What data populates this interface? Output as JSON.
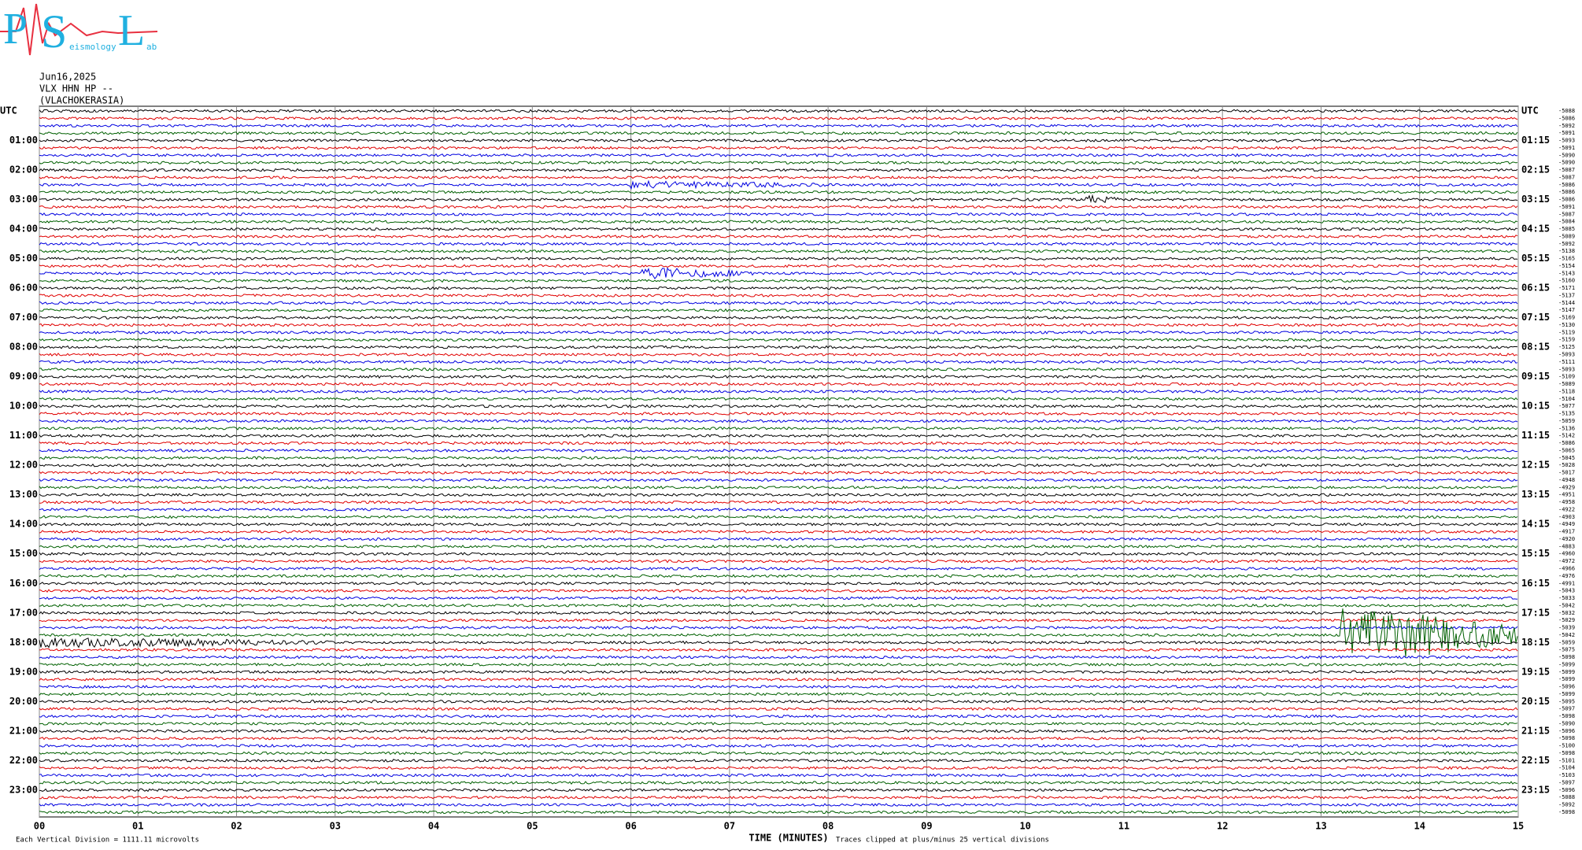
{
  "logo": {
    "letters": [
      "P",
      "S",
      "L"
    ],
    "small": [
      "eismology",
      "ab"
    ]
  },
  "header": {
    "date": "Jun16,2025",
    "channel": "VLX HHN HP --",
    "station": "(VLACHOKERASIA)"
  },
  "left_labels": [
    "UTC",
    "01:00",
    "02:00",
    "03:00",
    "04:00",
    "05:00",
    "06:00",
    "07:00",
    "08:00",
    "09:00",
    "10:00",
    "11:00",
    "12:00",
    "13:00",
    "14:00",
    "15:00",
    "16:00",
    "17:00",
    "18:00",
    "19:00",
    "20:00",
    "21:00",
    "22:00",
    "23:00"
  ],
  "right_labels": [
    "UTC",
    "01:15",
    "02:15",
    "03:15",
    "04:15",
    "05:15",
    "06:15",
    "07:15",
    "08:15",
    "09:15",
    "10:15",
    "11:15",
    "12:15",
    "13:15",
    "14:15",
    "15:15",
    "16:15",
    "17:15",
    "18:15",
    "19:15",
    "20:15",
    "21:15",
    "22:15",
    "23:15"
  ],
  "row_values": [
    -5088,
    -5086,
    -5092,
    -5091,
    -5093,
    -5091,
    -5090,
    -5090,
    -5087,
    -5087,
    -5086,
    -5086,
    -5086,
    -5091,
    -5087,
    -5084,
    -5085,
    -5089,
    -5092,
    -5138,
    -5165,
    -5154,
    -5143,
    -5160,
    -5171,
    -5137,
    -5144,
    -5147,
    -5169,
    -5130,
    -5119,
    -5159,
    -5125,
    -5093,
    -5111,
    -5093,
    -5109,
    -5089,
    -5118,
    -5104,
    -5077,
    -5135,
    -5059,
    -5136,
    -5142,
    -5086,
    -5065,
    -5045,
    -5028,
    -5017,
    -4948,
    -4929,
    -4951,
    -4958,
    -4922,
    -4903,
    -4949,
    -4917,
    -4920,
    -4883,
    -4960,
    -4972,
    -4966,
    -4976,
    -4991,
    -5043,
    -5033,
    -5042,
    -5032,
    -5029,
    -5039,
    -5042,
    -5059,
    -5075,
    -5098,
    -5099,
    -5099,
    -5099,
    -5096,
    -5099,
    -5095,
    -5097,
    -5098,
    -5090,
    -5096,
    -5098,
    -5100,
    -5098,
    -5101,
    -5104,
    -5103,
    -5097,
    -5096,
    -5088,
    -5092,
    -5098
  ],
  "colors": [
    "#000000",
    "#e00000",
    "#0000e0",
    "#006000"
  ],
  "x_axis": {
    "title": "TIME (MINUTES)",
    "xlim": [
      0,
      15
    ],
    "ticks": [
      {
        "value": 0,
        "label": "00"
      },
      {
        "value": 1,
        "label": "01"
      },
      {
        "value": 2,
        "label": "02"
      },
      {
        "value": 3,
        "label": "03"
      },
      {
        "value": 4,
        "label": "04"
      },
      {
        "value": 5,
        "label": "05"
      },
      {
        "value": 6,
        "label": "06"
      },
      {
        "value": 7,
        "label": "07"
      },
      {
        "value": 8,
        "label": "08"
      },
      {
        "value": 9,
        "label": "09"
      },
      {
        "value": 10,
        "label": "10"
      },
      {
        "value": 11,
        "label": "11"
      },
      {
        "value": 12,
        "label": "12"
      },
      {
        "value": 13,
        "label": "13"
      },
      {
        "value": 14,
        "label": "14"
      },
      {
        "value": 15,
        "label": "15"
      }
    ]
  },
  "footer": {
    "scale": "Each Vertical Division = 1111.11 microvolts",
    "clip": "Traces clipped at plus/minus 25 vertical divisions"
  }
}
